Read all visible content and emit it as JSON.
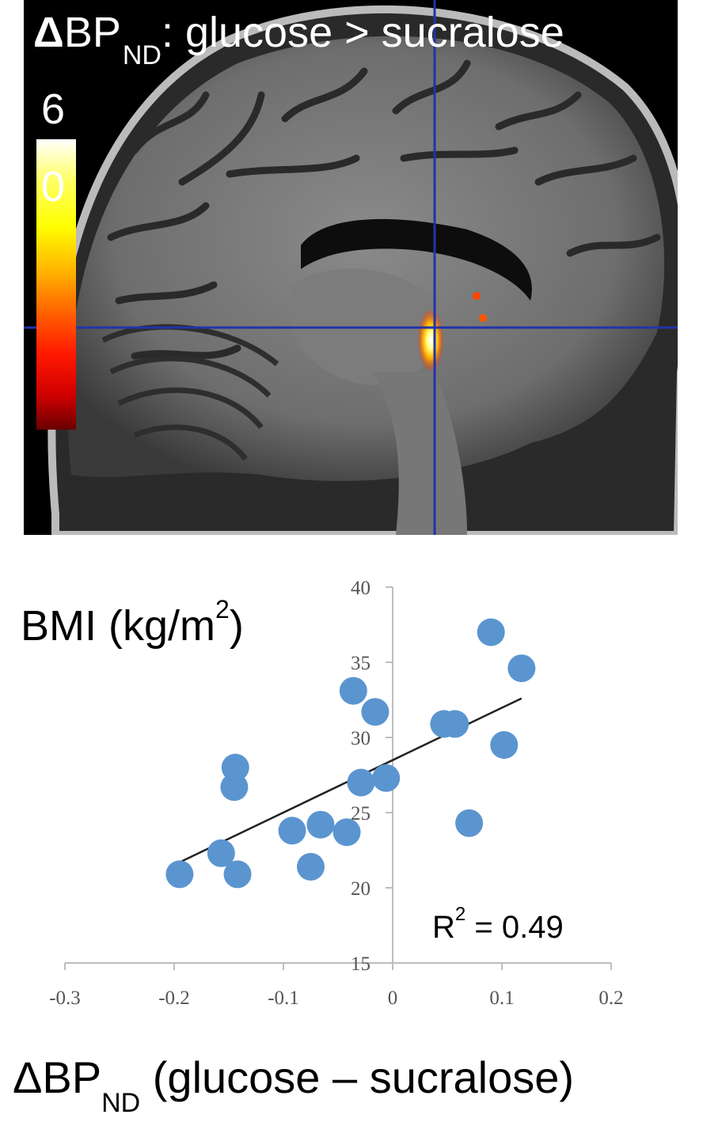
{
  "brain_panel": {
    "title_delta": "Δ",
    "title_bp": "BP",
    "title_sub": "ND",
    "title_rest": ": glucose > sucralose",
    "colorbar_max": "6",
    "colorbar_min": "0",
    "colors": {
      "crosshair": "#2233aa",
      "background": "#000000"
    }
  },
  "chart_data": {
    "type": "scatter",
    "title": "",
    "ylabel_text": "BMI (kg/m",
    "ylabel_sup": "2",
    "ylabel_close": ")",
    "xlabel_delta": "Δ",
    "xlabel_bp": "BP",
    "xlabel_sub": "ND",
    "xlabel_rest": " (glucose – sucralose)",
    "r2_prefix": "R",
    "r2_sup": "2",
    "r2_value": " = 0.49",
    "xlim": [
      -0.3,
      0.2
    ],
    "ylim": [
      15,
      40
    ],
    "xticks": [
      "-0.3",
      "-0.2",
      "-0.1",
      "0",
      "0.1",
      "0.2"
    ],
    "yticks": [
      "15",
      "20",
      "25",
      "30",
      "35",
      "40"
    ],
    "point_color": "#5b95cf",
    "trendline": {
      "x": [
        -0.195,
        0.118
      ],
      "y": [
        21.7,
        32.6
      ],
      "color": "#222222"
    },
    "points": [
      {
        "x": -0.195,
        "y": 20.9
      },
      {
        "x": -0.157,
        "y": 22.3
      },
      {
        "x": -0.142,
        "y": 20.9
      },
      {
        "x": -0.145,
        "y": 26.7
      },
      {
        "x": -0.144,
        "y": 28.0
      },
      {
        "x": -0.092,
        "y": 23.8
      },
      {
        "x": -0.075,
        "y": 21.4
      },
      {
        "x": -0.066,
        "y": 24.2
      },
      {
        "x": -0.042,
        "y": 23.7
      },
      {
        "x": -0.036,
        "y": 33.1
      },
      {
        "x": -0.029,
        "y": 27.0
      },
      {
        "x": -0.016,
        "y": 31.7
      },
      {
        "x": -0.006,
        "y": 27.3
      },
      {
        "x": 0.047,
        "y": 30.9
      },
      {
        "x": 0.057,
        "y": 30.9
      },
      {
        "x": 0.07,
        "y": 24.3
      },
      {
        "x": 0.09,
        "y": 37.0
      },
      {
        "x": 0.102,
        "y": 29.5
      },
      {
        "x": 0.118,
        "y": 34.6
      }
    ]
  }
}
